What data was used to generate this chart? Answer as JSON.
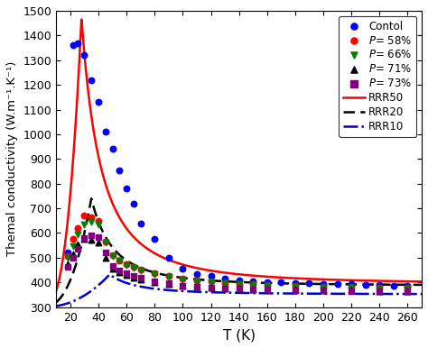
{
  "xlabel": "T (K)",
  "ylabel": "Themal conductivity (W.m⁻¹.K⁻¹)",
  "xlim": [
    10,
    270
  ],
  "ylim": [
    300,
    1500
  ],
  "yticks": [
    300,
    400,
    500,
    600,
    700,
    800,
    900,
    1000,
    1100,
    1200,
    1300,
    1400,
    1500
  ],
  "xticks": [
    20,
    40,
    60,
    80,
    100,
    120,
    140,
    160,
    180,
    200,
    220,
    240,
    260
  ],
  "control_x": [
    18,
    22,
    25,
    30,
    35,
    40,
    45,
    50,
    55,
    60,
    65,
    70,
    80,
    90,
    100,
    110,
    120,
    130,
    140,
    150,
    160,
    170,
    180,
    190,
    200,
    210,
    220,
    230,
    240,
    250,
    260
  ],
  "control_y": [
    520,
    1360,
    1370,
    1320,
    1220,
    1130,
    1010,
    940,
    855,
    780,
    720,
    640,
    575,
    500,
    455,
    435,
    425,
    415,
    410,
    405,
    400,
    400,
    398,
    396,
    394,
    392,
    392,
    390,
    390,
    388,
    388
  ],
  "p58_x": [
    18,
    22,
    25,
    30,
    35,
    40,
    45,
    50,
    55,
    60,
    65,
    70,
    80,
    90,
    100,
    110,
    120,
    130,
    140,
    150,
    160,
    180,
    200,
    220,
    240,
    260
  ],
  "p58_y": [
    505,
    575,
    620,
    670,
    665,
    650,
    565,
    510,
    490,
    475,
    462,
    452,
    437,
    425,
    415,
    408,
    403,
    398,
    395,
    392,
    390,
    386,
    383,
    381,
    380,
    378
  ],
  "p66_x": [
    18,
    22,
    25,
    30,
    35,
    40,
    45,
    50,
    55,
    60,
    65,
    70,
    80,
    90,
    100,
    110,
    120,
    130,
    140,
    150,
    160,
    180,
    200,
    220,
    240,
    260
  ],
  "p66_y": [
    498,
    548,
    595,
    635,
    645,
    635,
    560,
    508,
    488,
    472,
    458,
    448,
    433,
    422,
    413,
    406,
    401,
    396,
    393,
    390,
    387,
    383,
    380,
    378,
    377,
    376
  ],
  "p71_x": [
    18,
    22,
    25,
    30,
    35,
    40,
    45,
    50,
    55,
    60,
    65,
    70,
    80,
    90,
    100,
    110,
    120,
    130,
    140,
    150,
    160,
    180,
    200,
    220,
    240,
    260
  ],
  "p71_y": [
    475,
    515,
    555,
    575,
    572,
    562,
    500,
    455,
    440,
    430,
    420,
    412,
    402,
    395,
    388,
    383,
    380,
    377,
    375,
    373,
    372,
    370,
    368,
    367,
    366,
    365
  ],
  "p73_x": [
    18,
    22,
    25,
    30,
    35,
    40,
    45,
    50,
    55,
    60,
    65,
    70,
    80,
    90,
    100,
    110,
    120,
    130,
    140,
    150,
    160,
    180,
    200,
    220,
    240,
    260
  ],
  "p73_y": [
    462,
    498,
    535,
    580,
    590,
    585,
    520,
    465,
    448,
    436,
    426,
    418,
    405,
    397,
    388,
    382,
    378,
    376,
    374,
    372,
    371,
    369,
    367,
    366,
    365,
    364
  ],
  "color_control": "#0000ff",
  "color_p58": "#ff0000",
  "color_p66": "#008000",
  "color_p71": "#000000",
  "color_p73": "#800080",
  "color_RRR50": "#ff0000",
  "color_RRR20": "#000000",
  "color_RRR10": "#0000cc",
  "figsize": [
    4.74,
    3.86
  ],
  "dpi": 100
}
